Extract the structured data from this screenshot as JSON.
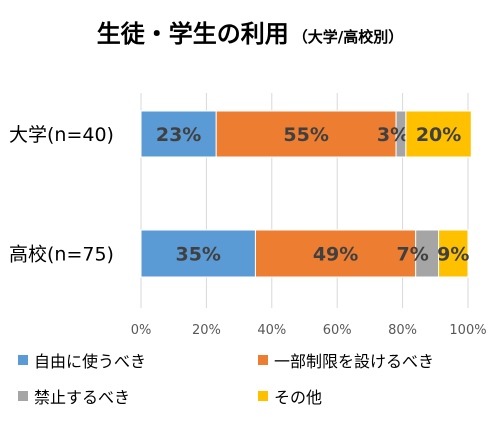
{
  "title": "生徒・学生の利用",
  "subtitle": "（大学/高校別）",
  "chart_data": {
    "type": "bar",
    "orientation": "horizontal",
    "stacked": true,
    "categories": [
      "大学(n=40)",
      "高校(n=75)"
    ],
    "series": [
      {
        "name": "自由に使うべき",
        "color": "#5B9BD5",
        "values": [
          23,
          35
        ],
        "labels": [
          "23%",
          "35%"
        ]
      },
      {
        "name": "一部制限を設けるべき",
        "color": "#ED7D31",
        "values": [
          55,
          49
        ],
        "labels": [
          "55%",
          "49%"
        ]
      },
      {
        "name": "禁止するべき",
        "color": "#A5A5A5",
        "values": [
          3,
          7
        ],
        "labels": [
          "3%",
          "7%"
        ]
      },
      {
        "name": "その他",
        "color": "#FFC000",
        "values": [
          20,
          9
        ],
        "labels": [
          "20%",
          "9%"
        ]
      }
    ],
    "xlim": [
      0,
      100
    ],
    "xticks": [
      "0%",
      "20%",
      "40%",
      "60%",
      "80%",
      "100%"
    ],
    "grid": true,
    "legend_position": "bottom"
  }
}
